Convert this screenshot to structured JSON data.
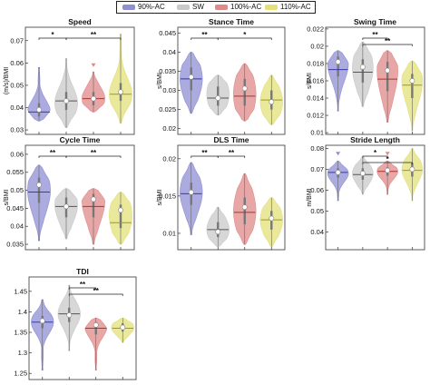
{
  "legend": {
    "items": [
      {
        "label": "90%-AC",
        "color": "#8f8fd4"
      },
      {
        "label": "SW",
        "color": "#c9c9c9"
      },
      {
        "label": "100%-AC",
        "color": "#e08a8a"
      },
      {
        "label": "110%-AC",
        "color": "#e3e07a"
      }
    ]
  },
  "chart_data": [
    {
      "type": "violin",
      "title": "Speed",
      "ylabel": "(m/s)/BMI",
      "ylim": [
        0.028,
        0.076
      ],
      "yticks": [
        "0.03",
        "0.04",
        "0.05",
        "0.06",
        "0.07"
      ],
      "ytick_values": [
        0.03,
        0.04,
        0.05,
        0.06,
        0.07
      ],
      "groups": [
        "90%-AC",
        "SW",
        "100%-AC",
        "110%-AC"
      ],
      "stats": [
        {
          "min": 0.034,
          "max": 0.058,
          "median": 0.038,
          "mean": 0.039,
          "q1": 0.036,
          "q3": 0.042,
          "mode": 0.038
        },
        {
          "min": 0.031,
          "max": 0.062,
          "median": 0.043,
          "mean": 0.043,
          "q1": 0.039,
          "q3": 0.047,
          "mode": 0.042
        },
        {
          "min": 0.038,
          "max": 0.056,
          "median": 0.044,
          "mean": 0.044,
          "q1": 0.041,
          "q3": 0.047,
          "mode": 0.044
        },
        {
          "min": 0.033,
          "max": 0.073,
          "median": 0.046,
          "mean": 0.047,
          "q1": 0.043,
          "q3": 0.051,
          "mode": 0.046
        }
      ],
      "outliers": [
        {
          "group": 2,
          "value": 0.059
        }
      ],
      "significance": [
        {
          "from": 0,
          "to": 1,
          "label": "*",
          "level": 0
        },
        {
          "from": 1,
          "to": 3,
          "label": "**",
          "level": 0
        }
      ]
    },
    {
      "type": "violin",
      "title": "Stance Time",
      "ylabel": "s/BMI",
      "ylim": [
        0.0185,
        0.0465
      ],
      "yticks": [
        "0.02",
        "0.025",
        "0.03",
        "0.035",
        "0.04",
        "0.045"
      ],
      "ytick_values": [
        0.02,
        0.025,
        0.03,
        0.035,
        0.04,
        0.045
      ],
      "groups": [
        "90%-AC",
        "SW",
        "100%-AC",
        "110%-AC"
      ],
      "stats": [
        {
          "min": 0.024,
          "max": 0.04,
          "median": 0.033,
          "mean": 0.0335,
          "q1": 0.03,
          "q3": 0.036,
          "mode": 0.033
        },
        {
          "min": 0.0235,
          "max": 0.034,
          "median": 0.028,
          "mean": 0.028,
          "q1": 0.026,
          "q3": 0.031,
          "mode": 0.029
        },
        {
          "min": 0.022,
          "max": 0.037,
          "median": 0.0285,
          "mean": 0.0305,
          "q1": 0.026,
          "q3": 0.033,
          "mode": 0.029
        },
        {
          "min": 0.021,
          "max": 0.034,
          "median": 0.0275,
          "mean": 0.027,
          "q1": 0.025,
          "q3": 0.03,
          "mode": 0.027
        }
      ],
      "outliers": [],
      "significance": [
        {
          "from": 0,
          "to": 1,
          "label": "**",
          "level": 0
        },
        {
          "from": 1,
          "to": 3,
          "label": "*",
          "level": 0
        }
      ]
    },
    {
      "type": "violin",
      "title": "Swing Time",
      "ylabel": "s/BMI",
      "ylim": [
        0.0098,
        0.0222
      ],
      "yticks": [
        "0.01",
        "0.012",
        "0.014",
        "0.016",
        "0.018",
        "0.02",
        "0.022"
      ],
      "ytick_values": [
        0.01,
        0.012,
        0.014,
        0.016,
        0.018,
        0.02,
        0.022
      ],
      "groups": [
        "90%-AC",
        "SW",
        "100%-AC",
        "110%-AC"
      ],
      "stats": [
        {
          "min": 0.0125,
          "max": 0.0195,
          "median": 0.0173,
          "mean": 0.0182,
          "q1": 0.0165,
          "q3": 0.0188,
          "mode": 0.018
        },
        {
          "min": 0.013,
          "max": 0.0205,
          "median": 0.017,
          "mean": 0.0176,
          "q1": 0.0158,
          "q3": 0.0185,
          "mode": 0.0175
        },
        {
          "min": 0.0112,
          "max": 0.0195,
          "median": 0.0162,
          "mean": 0.0172,
          "q1": 0.0148,
          "q3": 0.0182,
          "mode": 0.0172
        },
        {
          "min": 0.0102,
          "max": 0.0183,
          "median": 0.0155,
          "mean": 0.016,
          "q1": 0.014,
          "q3": 0.0168,
          "mode": 0.016
        }
      ],
      "outliers": [],
      "significance": [
        {
          "from": 1,
          "to": 2,
          "label": "**",
          "level": 0
        },
        {
          "from": 1,
          "to": 3,
          "label": "**",
          "level": 1
        }
      ]
    },
    {
      "type": "violin",
      "title": "Cycle Time",
      "ylabel": "s/BMI",
      "ylim": [
        0.0335,
        0.0625
      ],
      "yticks": [
        "0.035",
        "0.04",
        "0.045",
        "0.05",
        "0.055",
        "0.06"
      ],
      "ytick_values": [
        0.035,
        0.04,
        0.045,
        0.05,
        0.055,
        0.06
      ],
      "groups": [
        "90%-AC",
        "SW",
        "100%-AC",
        "110%-AC"
      ],
      "stats": [
        {
          "min": 0.036,
          "max": 0.057,
          "median": 0.0495,
          "mean": 0.0515,
          "q1": 0.0465,
          "q3": 0.0535,
          "mode": 0.05
        },
        {
          "min": 0.0365,
          "max": 0.0505,
          "median": 0.0455,
          "mean": 0.0455,
          "q1": 0.0425,
          "q3": 0.048,
          "mode": 0.046
        },
        {
          "min": 0.035,
          "max": 0.0505,
          "median": 0.0455,
          "mean": 0.0475,
          "q1": 0.0425,
          "q3": 0.049,
          "mode": 0.047
        },
        {
          "min": 0.035,
          "max": 0.0495,
          "median": 0.041,
          "mean": 0.0445,
          "q1": 0.0395,
          "q3": 0.046,
          "mode": 0.043
        }
      ],
      "outliers": [],
      "significance": [
        {
          "from": 0,
          "to": 1,
          "label": "**",
          "level": 0
        },
        {
          "from": 1,
          "to": 3,
          "label": "**",
          "level": 0
        }
      ]
    },
    {
      "type": "violin",
      "title": "DLS Time",
      "ylabel": "s/BMI",
      "ylim": [
        0.0078,
        0.0218
      ],
      "yticks": [
        "0.01",
        "0.015",
        "0.02"
      ],
      "ytick_values": [
        0.01,
        0.015,
        0.02
      ],
      "groups": [
        "90%-AC",
        "SW",
        "100%-AC",
        "110%-AC"
      ],
      "stats": [
        {
          "min": 0.0098,
          "max": 0.0195,
          "median": 0.0153,
          "mean": 0.0155,
          "q1": 0.0138,
          "q3": 0.0168,
          "mode": 0.0155
        },
        {
          "min": 0.0082,
          "max": 0.0135,
          "median": 0.0105,
          "mean": 0.0102,
          "q1": 0.0095,
          "q3": 0.0115,
          "mode": 0.0105
        },
        {
          "min": 0.0085,
          "max": 0.018,
          "median": 0.0128,
          "mean": 0.0135,
          "q1": 0.0112,
          "q3": 0.0148,
          "mode": 0.013
        },
        {
          "min": 0.0082,
          "max": 0.0148,
          "median": 0.0118,
          "mean": 0.012,
          "q1": 0.0105,
          "q3": 0.013,
          "mode": 0.0118
        }
      ],
      "outliers": [],
      "significance": [
        {
          "from": 0,
          "to": 1,
          "label": "**",
          "level": 0
        },
        {
          "from": 1,
          "to": 2,
          "label": "**",
          "level": 0
        }
      ]
    },
    {
      "type": "violin",
      "title": "Stride Length",
      "ylabel": "m/BMI",
      "ylim": [
        0.0315,
        0.0815
      ],
      "yticks": [
        "0.04",
        "0.05",
        "0.06",
        "0.07",
        "0.08"
      ],
      "ytick_values": [
        0.04,
        0.05,
        0.06,
        0.07,
        0.08
      ],
      "groups": [
        "90%-AC",
        "SW",
        "100%-AC",
        "110%-AC"
      ],
      "stats": [
        {
          "min": 0.055,
          "max": 0.074,
          "median": 0.0685,
          "mean": 0.0685,
          "q1": 0.066,
          "q3": 0.0705,
          "mode": 0.068
        },
        {
          "min": 0.058,
          "max": 0.076,
          "median": 0.0675,
          "mean": 0.068,
          "q1": 0.065,
          "q3": 0.0705,
          "mode": 0.068
        },
        {
          "min": 0.058,
          "max": 0.074,
          "median": 0.069,
          "mean": 0.0695,
          "q1": 0.067,
          "q3": 0.071,
          "mode": 0.069
        },
        {
          "min": 0.055,
          "max": 0.08,
          "median": 0.0695,
          "mean": 0.07,
          "q1": 0.0665,
          "q3": 0.073,
          "mode": 0.07
        }
      ],
      "outliers": [
        {
          "group": 0,
          "value": 0.0775
        },
        {
          "group": 2,
          "value": 0.0775
        }
      ],
      "significance": [
        {
          "from": 1,
          "to": 2,
          "label": "*",
          "level": 0
        },
        {
          "from": 1,
          "to": 3,
          "label": "*",
          "level": 1
        }
      ]
    },
    {
      "type": "violin",
      "title": "TDI",
      "ylabel": "",
      "ylim": [
        1.235,
        1.485
      ],
      "yticks": [
        "1.25",
        "1.3",
        "1.35",
        "1.4",
        "1.45"
      ],
      "ytick_values": [
        1.25,
        1.3,
        1.35,
        1.4,
        1.45
      ],
      "groups": [
        "90%-AC",
        "SW",
        "100%-AC",
        "110%-AC"
      ],
      "stats": [
        {
          "min": 1.258,
          "max": 1.43,
          "median": 1.375,
          "mean": 1.378,
          "q1": 1.36,
          "q3": 1.39,
          "mode": 1.375
        },
        {
          "min": 1.305,
          "max": 1.465,
          "median": 1.395,
          "mean": 1.392,
          "q1": 1.375,
          "q3": 1.41,
          "mode": 1.395
        },
        {
          "min": 1.258,
          "max": 1.385,
          "median": 1.36,
          "mean": 1.368,
          "q1": 1.345,
          "q3": 1.375,
          "mode": 1.365
        },
        {
          "min": 1.325,
          "max": 1.385,
          "median": 1.36,
          "mean": 1.362,
          "q1": 1.352,
          "q3": 1.372,
          "mode": 1.362
        }
      ],
      "outliers": [],
      "significance": [
        {
          "from": 1,
          "to": 2,
          "label": "**",
          "level": 0
        },
        {
          "from": 1,
          "to": 3,
          "label": "**",
          "level": 1
        }
      ]
    }
  ]
}
